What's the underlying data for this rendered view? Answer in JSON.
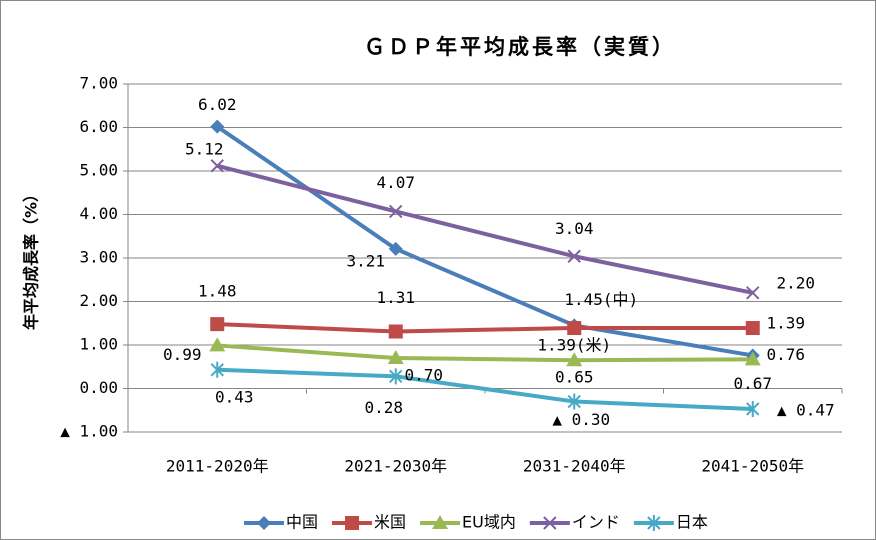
{
  "chart_data": {
    "type": "line",
    "title": "ＧＤＰ年平均成長率（実質）",
    "y_label": "年平均成長率（%）",
    "categories": [
      "2011-2020年",
      "2021-2030年",
      "2031-2040年",
      "2041-2050年"
    ],
    "series": [
      {
        "name": "中国",
        "color": "#4a7ebb",
        "marker": "diamond",
        "values": [
          6.02,
          3.21,
          1.45,
          0.76
        ],
        "value_labels": [
          "6.02",
          "3.21",
          "1.45(中)",
          "0.76"
        ]
      },
      {
        "name": "米国",
        "color": "#be4b48",
        "marker": "square",
        "values": [
          1.48,
          1.31,
          1.39,
          1.39
        ],
        "value_labels": [
          "1.48",
          "1.31",
          "1.39(米)",
          "1.39"
        ]
      },
      {
        "name": "EU域内",
        "color": "#98b954",
        "marker": "triangle",
        "values": [
          0.99,
          0.7,
          0.65,
          0.67
        ],
        "value_labels": [
          "0.99",
          "0.70",
          "0.65",
          "0.67"
        ]
      },
      {
        "name": "インド",
        "color": "#7d60a0",
        "marker": "x",
        "values": [
          5.12,
          4.07,
          3.04,
          2.2
        ],
        "value_labels": [
          "5.12",
          "4.07",
          "3.04",
          "2.20"
        ]
      },
      {
        "name": "日本",
        "color": "#46aac5",
        "marker": "star",
        "values": [
          0.43,
          0.28,
          -0.3,
          -0.47
        ],
        "value_labels": [
          "0.43",
          "0.28",
          "▲ 0.30",
          "▲ 0.47"
        ]
      }
    ],
    "ylim": [
      -1,
      7
    ],
    "yticks": [
      {
        "value": -1,
        "label": "▲ 1.00"
      },
      {
        "value": 0,
        "label": "0.00"
      },
      {
        "value": 1,
        "label": "1.00"
      },
      {
        "value": 2,
        "label": "2.00"
      },
      {
        "value": 3,
        "label": "3.00"
      },
      {
        "value": 4,
        "label": "4.00"
      },
      {
        "value": 5,
        "label": "5.00"
      },
      {
        "value": 6,
        "label": "6.00"
      },
      {
        "value": 7,
        "label": "7.00"
      }
    ],
    "grid": true,
    "legend": "bottom"
  }
}
